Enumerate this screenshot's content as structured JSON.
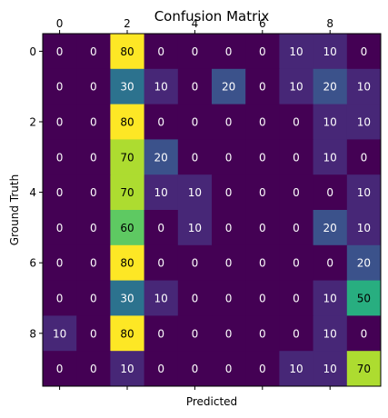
{
  "chart_data": {
    "type": "heatmap",
    "title": "Confusion Matrix",
    "xlabel": "Predicted",
    "ylabel": "Ground Truth",
    "x_tick_labels": [
      "0",
      "2",
      "4",
      "6",
      "8"
    ],
    "x_tick_values": [
      0,
      2,
      4,
      6,
      8
    ],
    "y_tick_labels": [
      "0",
      "2",
      "4",
      "6",
      "8"
    ],
    "y_tick_values": [
      0,
      2,
      4,
      6,
      8
    ],
    "x_ticks_position": "top",
    "colormap": "viridis",
    "vmin": 0,
    "vmax": 80,
    "annotation_color_low": "#ffffff",
    "annotation_color_high": "#000000",
    "rows": [
      [
        0,
        0,
        80,
        0,
        0,
        0,
        0,
        10,
        10,
        0
      ],
      [
        0,
        0,
        30,
        10,
        0,
        20,
        0,
        10,
        20,
        10
      ],
      [
        0,
        0,
        80,
        0,
        0,
        0,
        0,
        0,
        10,
        10
      ],
      [
        0,
        0,
        70,
        20,
        0,
        0,
        0,
        0,
        10,
        0
      ],
      [
        0,
        0,
        70,
        10,
        10,
        0,
        0,
        0,
        0,
        10
      ],
      [
        0,
        0,
        60,
        0,
        10,
        0,
        0,
        0,
        20,
        10
      ],
      [
        0,
        0,
        80,
        0,
        0,
        0,
        0,
        0,
        0,
        20
      ],
      [
        0,
        0,
        30,
        10,
        0,
        0,
        0,
        0,
        10,
        50
      ],
      [
        10,
        0,
        80,
        0,
        0,
        0,
        0,
        0,
        10,
        0
      ],
      [
        0,
        0,
        10,
        0,
        0,
        0,
        0,
        10,
        10,
        70
      ]
    ]
  }
}
